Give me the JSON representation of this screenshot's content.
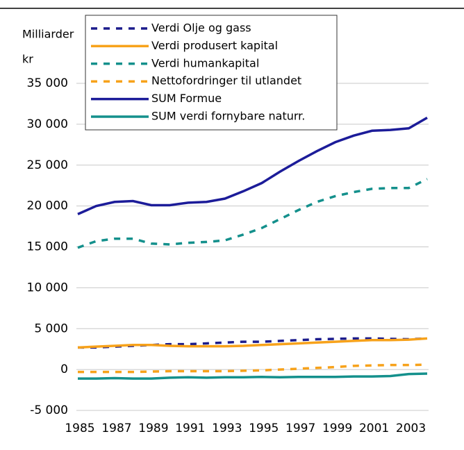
{
  "chart_data": {
    "type": "line",
    "y_label_lines": [
      "Milliarder",
      "kr"
    ],
    "x": [
      1985,
      1986,
      1987,
      1988,
      1989,
      1990,
      1991,
      1992,
      1993,
      1994,
      1995,
      1996,
      1997,
      1998,
      1999,
      2000,
      2001,
      2002,
      2003,
      2004
    ],
    "xlim": [
      1985,
      2004
    ],
    "xticks": [
      1985,
      1987,
      1989,
      1991,
      1993,
      1995,
      1997,
      1999,
      2001,
      2003
    ],
    "ylim": [
      -5000,
      35000
    ],
    "yticks": [
      {
        "value": -5000,
        "label": "-5 000"
      },
      0,
      {
        "value": 5000,
        "label": "5 000"
      },
      {
        "value": 10000,
        "label": "10 000"
      },
      {
        "value": 15000,
        "label": "15 000"
      },
      {
        "value": 20000,
        "label": "20 000"
      },
      {
        "value": 25000,
        "label": "25 000"
      },
      {
        "value": 30000,
        "label": "30 000"
      },
      {
        "value": 35000,
        "label": "35 000"
      }
    ],
    "grid": true,
    "series": [
      {
        "name": "Verdi Olje og gass",
        "color": "#1c1c8c",
        "dashed": true,
        "values": [
          2700,
          2700,
          2800,
          2900,
          3000,
          3100,
          3100,
          3200,
          3300,
          3400,
          3400,
          3500,
          3600,
          3700,
          3750,
          3800,
          3800,
          3750,
          3700,
          3800
        ]
      },
      {
        "name": "Verdi produsert kapital",
        "color": "#f7a21b",
        "dashed": false,
        "values": [
          2700,
          2800,
          2900,
          3000,
          3000,
          2900,
          2850,
          2850,
          2850,
          2900,
          3000,
          3100,
          3200,
          3300,
          3400,
          3500,
          3600,
          3600,
          3650,
          3800
        ]
      },
      {
        "name": "Verdi humankapital",
        "color": "#14908c",
        "dashed": true,
        "values": [
          14900,
          15700,
          16000,
          16000,
          15400,
          15300,
          15500,
          15600,
          15800,
          16500,
          17300,
          18400,
          19500,
          20500,
          21200,
          21700,
          22100,
          22200,
          22200,
          23300
        ]
      },
      {
        "name": "Nettofordringer til utlandet",
        "color": "#f7a21b",
        "dashed": true,
        "values": [
          -300,
          -300,
          -300,
          -300,
          -250,
          -200,
          -200,
          -200,
          -200,
          -150,
          -100,
          0,
          100,
          200,
          300,
          450,
          500,
          550,
          550,
          600
        ]
      },
      {
        "name": "SUM Formue",
        "color": "#1c1c99",
        "dashed": false,
        "values": [
          19000,
          20000,
          20500,
          20600,
          20100,
          20100,
          20400,
          20500,
          20900,
          21800,
          22800,
          24200,
          25500,
          26700,
          27800,
          28600,
          29200,
          29300,
          29500,
          30800
        ]
      },
      {
        "name": "SUM verdi fornybare naturr.",
        "color": "#14908c",
        "dashed": false,
        "values": [
          -1100,
          -1100,
          -1050,
          -1100,
          -1100,
          -1000,
          -950,
          -1000,
          -950,
          -950,
          -900,
          -950,
          -900,
          -900,
          -900,
          -850,
          -850,
          -800,
          -550,
          -500
        ]
      }
    ]
  }
}
